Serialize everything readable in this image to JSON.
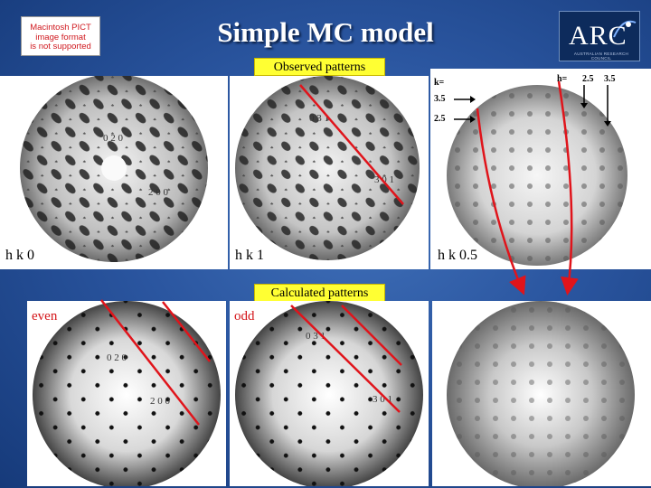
{
  "slide": {
    "title": "Simple MC model",
    "placeholder_image_text": [
      "Macintosh PICT",
      "image format",
      "is not supported"
    ],
    "logo_text": "ARC",
    "logo_subtext": "AUSTRALIAN RESEARCH COUNCIL"
  },
  "labels": {
    "observed": "Observed patterns",
    "calculated": "Calculated patterns",
    "even": "even",
    "odd": "odd"
  },
  "observed": [
    {
      "hk_label": "h k 0",
      "spots": [
        "0 2 0",
        "2 0 0"
      ]
    },
    {
      "hk_label": "h k 1",
      "spots": [
        "0 3 1",
        "3 0 1"
      ]
    },
    {
      "hk_label": "h k 0.5",
      "k_label": "k=",
      "h_label": "h=",
      "k_values": [
        "3.5",
        "2.5"
      ],
      "h_values": [
        "2.5",
        "3.5"
      ]
    }
  ],
  "calculated": [
    {
      "spots": [
        "0 2 0",
        "2 0 0"
      ]
    },
    {
      "spots": [
        "0 3 1",
        "3 0 1"
      ]
    },
    {
      "spots": []
    }
  ],
  "colors": {
    "accent_yellow": "#ffff33",
    "annotation_red": "#e0141b",
    "background": "#2a559f"
  }
}
